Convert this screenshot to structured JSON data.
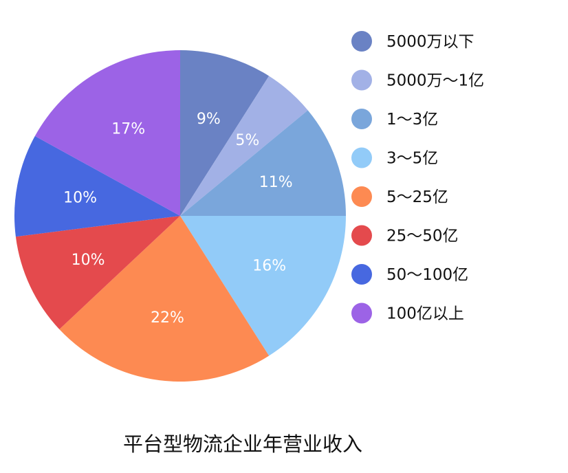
{
  "chart_data": {
    "type": "pie",
    "title": "平台型物流企业年营业收入",
    "categories": [
      "5000万以下",
      "5000万～1亿",
      "1～3亿",
      "3～5亿",
      "5～25亿",
      "25～50亿",
      "50～100亿",
      "100亿以上"
    ],
    "values": [
      9,
      5,
      11,
      16,
      22,
      10,
      10,
      17
    ],
    "value_labels": [
      "9%",
      "5%",
      "11%",
      "16%",
      "22%",
      "10%",
      "10%",
      "17%"
    ],
    "colors": [
      "#6a82c4",
      "#a2b1e6",
      "#7aa6db",
      "#92cbf8",
      "#fd8a52",
      "#e44a4d",
      "#4768e0",
      "#9c63e6"
    ],
    "start_angle_deg": 0,
    "direction": "clockwise",
    "legend_position": "right"
  }
}
